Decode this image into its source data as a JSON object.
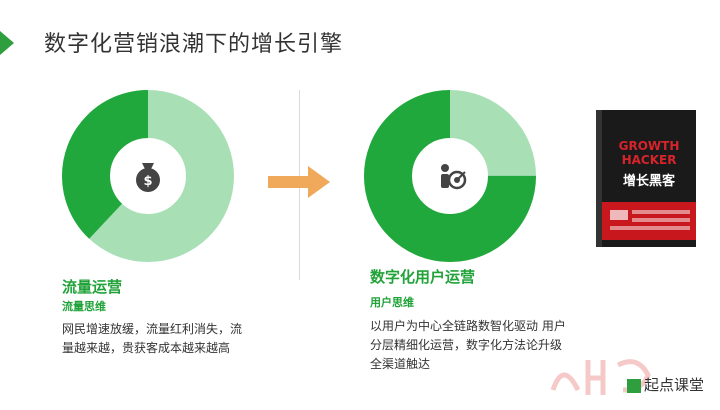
{
  "title": "数字化营销浪潮下的增长引擎",
  "left": {
    "title": "流量运营",
    "subtitle": "流量思维",
    "description": "网民增速放缓，流量红利消失，流量越来越，贵获客成本越来越高",
    "icon": "money-bag-icon",
    "donut_fraction_dark": 0.38
  },
  "right": {
    "title": "数字化用户运营",
    "subtitle": "用户思维",
    "description": "以用户为中心全链路数智化驱动 用户分层精细化运营，数字化方法论升级全渠道触达",
    "icon": "user-target-icon",
    "donut_fraction_dark": 0.75
  },
  "book": {
    "title_en_1": "GROWTH",
    "title_en_2": "HACKER",
    "title_cn": "增长黑客"
  },
  "watermark": {
    "text": "起点课堂"
  },
  "colors": {
    "dark_green": "#21a83c",
    "light_green": "#a8dfb5",
    "arrow": "#f0a95a",
    "accent": "#2e9e3e"
  }
}
